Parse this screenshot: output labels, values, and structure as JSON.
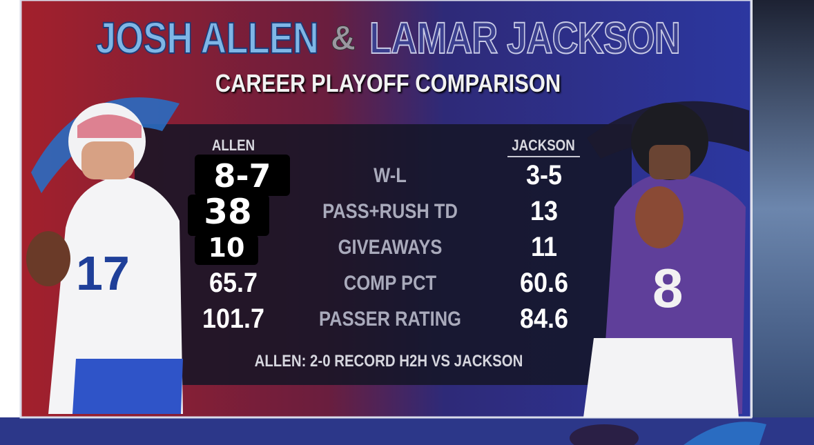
{
  "title": {
    "left": "JOSH ALLEN",
    "amp": "&",
    "right": "LAMAR JACKSON",
    "subtitle": "CAREER PLAYOFF COMPARISON"
  },
  "table": {
    "headers": [
      "ALLEN",
      "JACKSON"
    ],
    "rows": [
      [
        "8-7",
        "W-L",
        "3-5"
      ],
      [
        "38",
        "PASS+RUSH TD",
        "13"
      ],
      [
        "10",
        "GIVEAWAYS",
        "11"
      ],
      [
        "65.7",
        "COMP PCT",
        "60.6"
      ],
      [
        "101.7",
        "PASSER RATING",
        "84.6"
      ]
    ]
  },
  "footer": "ALLEN: 2-0 RECORD H2H VS JACKSON"
}
